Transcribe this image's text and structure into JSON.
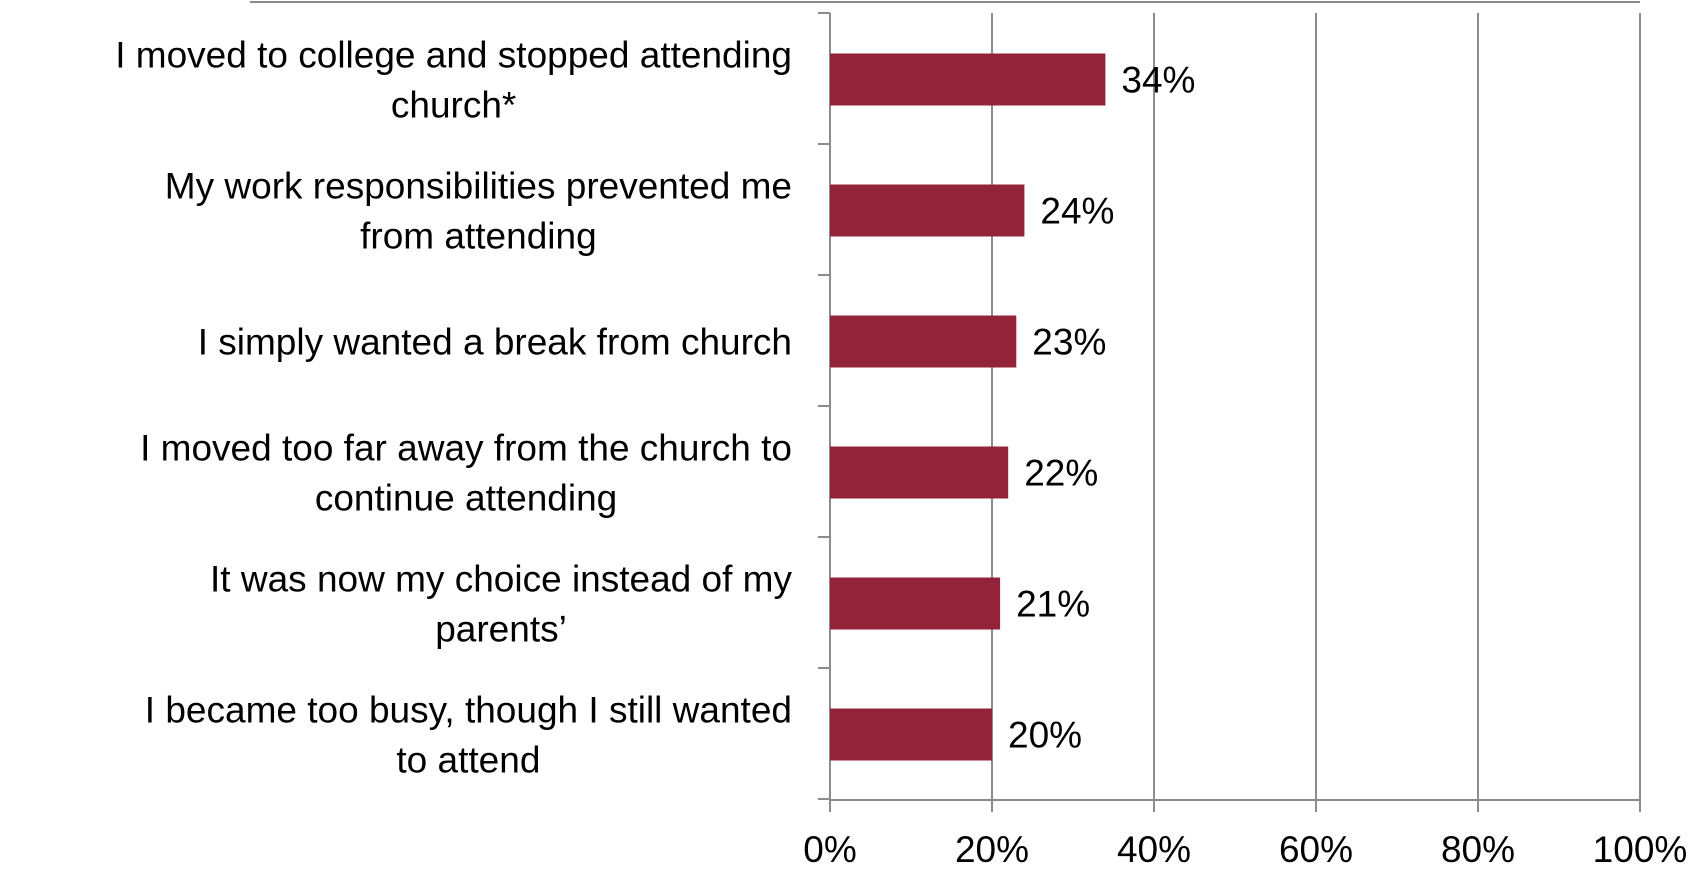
{
  "chart_data": {
    "type": "bar",
    "orientation": "horizontal",
    "categories": [
      [
        "I moved to college and stopped attending",
        "church*"
      ],
      [
        "My work responsibilities prevented me",
        "from attending"
      ],
      [
        "I simply wanted a break from church"
      ],
      [
        "I moved too far away from the church to",
        "continue attending"
      ],
      [
        "It was now my choice instead of my",
        "parents’"
      ],
      [
        "I became too busy, though I still wanted",
        "to attend"
      ]
    ],
    "values": [
      34,
      24,
      23,
      22,
      21,
      20
    ],
    "data_labels": [
      "34%",
      "24%",
      "23%",
      "22%",
      "21%",
      "20%"
    ],
    "xlim": [
      0,
      100
    ],
    "x_ticks": [
      0,
      20,
      40,
      60,
      80,
      100
    ],
    "x_tick_labels": [
      "0%",
      "20%",
      "40%",
      "60%",
      "80%",
      "100%"
    ],
    "grid": "vertical",
    "legend": "none",
    "colors": {
      "bar": "#922339",
      "grid": "#8c8c8c",
      "axis": "#8c8c8c",
      "top_rule": "#8c8c8c"
    }
  }
}
